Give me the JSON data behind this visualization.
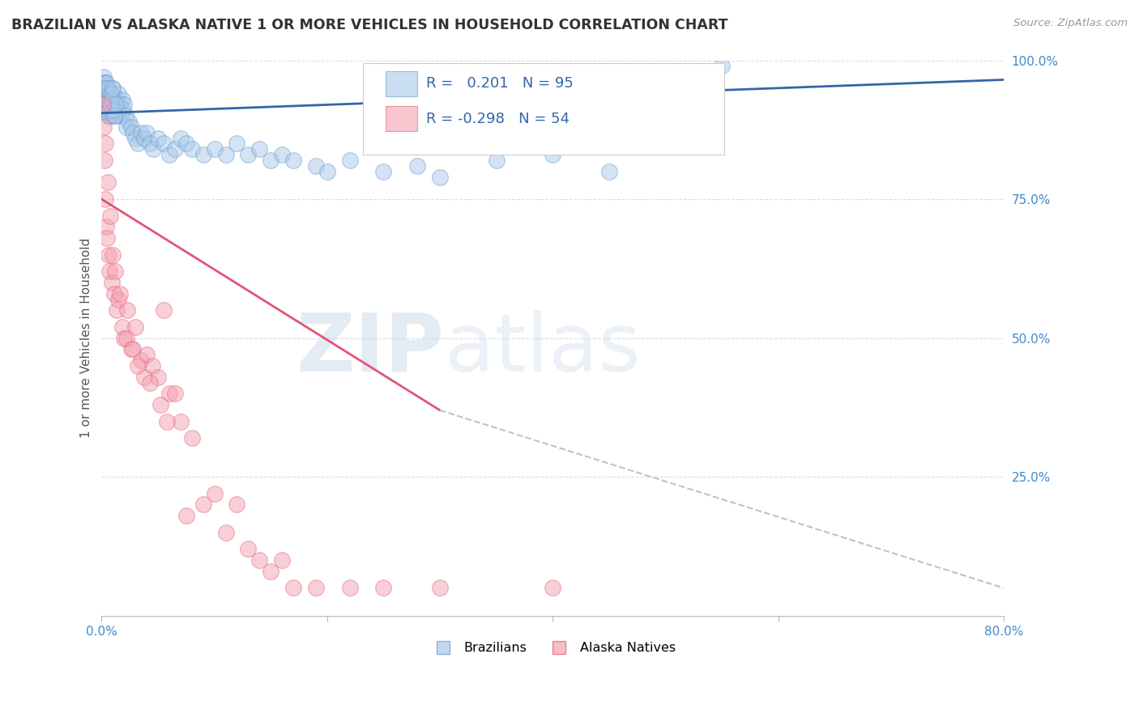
{
  "title": "BRAZILIAN VS ALASKA NATIVE 1 OR MORE VEHICLES IN HOUSEHOLD CORRELATION CHART",
  "source_text": "Source: ZipAtlas.com",
  "ylabel": "1 or more Vehicles in Household",
  "xmin": 0.0,
  "xmax": 80.0,
  "ymin": 0.0,
  "ymax": 100.0,
  "blue_R": 0.201,
  "blue_N": 95,
  "pink_R": -0.298,
  "pink_N": 54,
  "blue_color": "#a8c8e8",
  "pink_color": "#f4a0b0",
  "blue_edge_color": "#6699cc",
  "pink_edge_color": "#e06080",
  "blue_line_color": "#3366aa",
  "pink_line_color": "#e05575",
  "dash_line_color": "#ccbbcc",
  "watermark_zip": "ZIP",
  "watermark_atlas": "atlas",
  "ytick_color": "#4488cc",
  "xtick_color": "#4488cc",
  "grid_color": "#dddddd",
  "title_color": "#333333",
  "source_color": "#999999",
  "blue_line_x0": 0.0,
  "blue_line_x1": 80.0,
  "blue_line_y0": 90.5,
  "blue_line_y1": 96.5,
  "pink_solid_x0": 0.0,
  "pink_solid_x1": 30.0,
  "pink_solid_y0": 75.0,
  "pink_solid_y1": 37.0,
  "pink_dash_x0": 30.0,
  "pink_dash_x1": 80.0,
  "pink_dash_y0": 37.0,
  "pink_dash_y1": 5.0,
  "blue_scatter_x": [
    0.1,
    0.15,
    0.18,
    0.2,
    0.22,
    0.25,
    0.28,
    0.3,
    0.32,
    0.35,
    0.38,
    0.4,
    0.42,
    0.45,
    0.48,
    0.5,
    0.55,
    0.6,
    0.65,
    0.7,
    0.75,
    0.8,
    0.85,
    0.9,
    0.95,
    1.0,
    1.1,
    1.2,
    1.3,
    1.4,
    1.5,
    1.6,
    1.7,
    1.8,
    1.9,
    2.0,
    2.1,
    2.2,
    2.4,
    2.6,
    2.8,
    3.0,
    3.2,
    3.5,
    3.8,
    4.0,
    4.3,
    4.6,
    5.0,
    5.5,
    6.0,
    6.5,
    7.0,
    7.5,
    8.0,
    9.0,
    10.0,
    11.0,
    12.0,
    13.0,
    14.0,
    15.0,
    16.0,
    17.0,
    19.0,
    20.0,
    22.0,
    25.0,
    28.0,
    30.0,
    35.0,
    40.0,
    45.0,
    55.0,
    0.12,
    0.17,
    0.23,
    0.27,
    0.33,
    0.37,
    0.43,
    0.47,
    0.53,
    0.57,
    0.63,
    0.67,
    0.73,
    0.77,
    0.83,
    0.88,
    0.93,
    0.98,
    1.05,
    1.15,
    1.25
  ],
  "blue_scatter_y": [
    94,
    97,
    95,
    93,
    96,
    92,
    94,
    96,
    91,
    93,
    95,
    92,
    94,
    91,
    93,
    95,
    92,
    90,
    91,
    93,
    90,
    92,
    94,
    91,
    93,
    95,
    92,
    90,
    93,
    91,
    94,
    92,
    90,
    93,
    91,
    92,
    90,
    88,
    89,
    88,
    87,
    86,
    85,
    87,
    86,
    87,
    85,
    84,
    86,
    85,
    83,
    84,
    86,
    85,
    84,
    83,
    84,
    83,
    85,
    83,
    84,
    82,
    83,
    82,
    81,
    80,
    82,
    80,
    81,
    79,
    82,
    83,
    80,
    99,
    95,
    94,
    93,
    95,
    92,
    94,
    96,
    91,
    93,
    95,
    90,
    92,
    94,
    91,
    92,
    94,
    93,
    95,
    91,
    90,
    92
  ],
  "pink_scatter_x": [
    0.12,
    0.18,
    0.25,
    0.32,
    0.4,
    0.5,
    0.6,
    0.7,
    0.9,
    1.1,
    1.3,
    1.5,
    1.8,
    2.0,
    2.3,
    2.6,
    3.0,
    3.5,
    4.0,
    4.5,
    5.0,
    5.5,
    6.0,
    7.0,
    8.0,
    9.0,
    10.0,
    12.0,
    14.0,
    16.0,
    0.35,
    0.55,
    0.75,
    1.0,
    1.2,
    1.6,
    2.2,
    2.8,
    3.2,
    3.8,
    4.3,
    5.2,
    5.8,
    6.5,
    7.5,
    11.0,
    13.0,
    15.0,
    17.0,
    19.0,
    22.0,
    25.0,
    30.0,
    40.0
  ],
  "pink_scatter_y": [
    92,
    88,
    82,
    75,
    70,
    68,
    65,
    62,
    60,
    58,
    55,
    57,
    52,
    50,
    55,
    48,
    52,
    46,
    47,
    45,
    43,
    55,
    40,
    35,
    32,
    20,
    22,
    20,
    10,
    10,
    85,
    78,
    72,
    65,
    62,
    58,
    50,
    48,
    45,
    43,
    42,
    38,
    35,
    40,
    18,
    15,
    12,
    8,
    5,
    5,
    5,
    5,
    5,
    5
  ]
}
